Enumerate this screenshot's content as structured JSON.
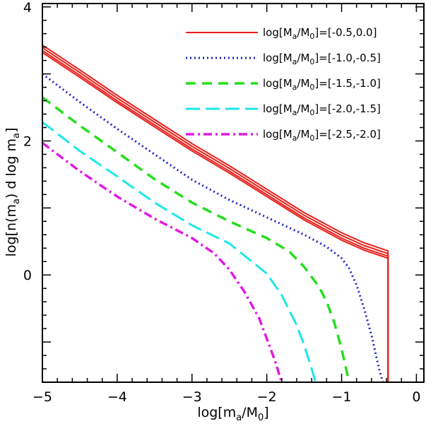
{
  "chart_data": {
    "type": "line",
    "title": "",
    "xlabel": "log[m_a/M_0]",
    "ylabel": "log[n(m_a) d log m_a]",
    "xlim": [
      -5,
      0.1
    ],
    "ylim": [
      -1.6,
      4.05
    ],
    "xticks": [
      -5,
      -4,
      -3,
      -2,
      -1,
      0
    ],
    "yticks": [
      0,
      2,
      4
    ],
    "legend_position": "top-right",
    "series": [
      {
        "name": "log[M_a/M_0]=[-0.5,0.0]",
        "label_main": "log[M",
        "label_sub": "a",
        "label_mid": "/M",
        "label_sub2": "0",
        "label_tail": "]=[-0.5,0.0]",
        "color": "#e8201c",
        "dash": "solid",
        "x": [
          -5.0,
          -4.5,
          -4.0,
          -3.5,
          -3.0,
          -2.5,
          -2.0,
          -1.5,
          -1.0,
          -0.7,
          -0.38,
          -0.38
        ],
        "y": [
          3.35,
          2.98,
          2.6,
          2.24,
          1.88,
          1.55,
          1.2,
          0.85,
          0.55,
          0.4,
          0.28,
          -1.6
        ],
        "offsets": [
          0.08,
          0.04,
          0.0,
          -0.03
        ]
      },
      {
        "name": "log[M_a/M_0]=[-1.0,-0.5]",
        "label_main": "log[M",
        "label_sub": "a",
        "label_mid": "/M",
        "label_sub2": "0",
        "label_tail": "]=[-1.0,-0.5]",
        "color": "#1c22c4",
        "dash": "dotted",
        "x": [
          -5.0,
          -4.5,
          -4.0,
          -3.5,
          -3.0,
          -2.5,
          -2.0,
          -1.5,
          -1.2,
          -1.0,
          -0.9,
          -0.8,
          -0.7,
          -0.6,
          -0.5,
          -0.45
        ],
        "y": [
          3.0,
          2.58,
          2.18,
          1.8,
          1.42,
          1.12,
          0.86,
          0.6,
          0.42,
          0.25,
          0.1,
          -0.15,
          -0.5,
          -0.9,
          -1.4,
          -1.6
        ]
      },
      {
        "name": "log[M_a/M_0]=[-1.5,-1.0]",
        "label_main": "log[M",
        "label_sub": "a",
        "label_mid": "/M",
        "label_sub2": "0",
        "label_tail": "]=[-1.5,-1.0]",
        "color": "#22e01c",
        "dash": "dashed",
        "x": [
          -5.0,
          -4.5,
          -4.0,
          -3.5,
          -3.0,
          -2.5,
          -2.0,
          -1.7,
          -1.5,
          -1.3,
          -1.2,
          -1.1,
          -1.0,
          -0.9
        ],
        "y": [
          2.65,
          2.23,
          1.83,
          1.43,
          1.08,
          0.8,
          0.55,
          0.35,
          0.12,
          -0.18,
          -0.4,
          -0.7,
          -1.1,
          -1.6
        ]
      },
      {
        "name": "log[M_a/M_0]=[-2.0,-1.5]",
        "label_main": "log[M",
        "label_sub": "a",
        "label_mid": "/M",
        "label_sub2": "0",
        "label_tail": "]=[-2.0,-1.5]",
        "color": "#1ce8e8",
        "dash": "longdash",
        "x": [
          -5.0,
          -4.5,
          -4.0,
          -3.5,
          -3.0,
          -2.5,
          -2.0,
          -1.8,
          -1.6,
          -1.5,
          -1.4,
          -1.35
        ],
        "y": [
          2.28,
          1.85,
          1.47,
          1.08,
          0.74,
          0.47,
          0.02,
          -0.3,
          -0.75,
          -1.05,
          -1.4,
          -1.6
        ]
      },
      {
        "name": "log[M_a/M_0]=[-2.5,-2.0]",
        "label_main": "log[M",
        "label_sub": "a",
        "label_mid": "/M",
        "label_sub2": "0",
        "label_tail": "]=[-2.5,-2.0]",
        "color": "#e01ce0",
        "dash": "dashdot",
        "x": [
          -5.0,
          -4.5,
          -4.0,
          -3.5,
          -3.0,
          -2.7,
          -2.5,
          -2.3,
          -2.1,
          -2.0,
          -1.9,
          -1.8
        ],
        "y": [
          1.97,
          1.55,
          1.17,
          0.84,
          0.55,
          0.32,
          0.08,
          -0.25,
          -0.65,
          -0.95,
          -1.25,
          -1.6
        ]
      }
    ]
  }
}
